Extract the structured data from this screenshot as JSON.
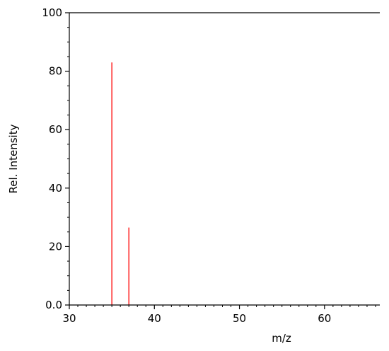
{
  "chart_data": {
    "type": "bar",
    "subtype": "stick-spectrum",
    "title": "",
    "xlabel": "m/z",
    "ylabel": "Rel. Intensity",
    "xlim": [
      30,
      66.5
    ],
    "ylim": [
      0,
      100
    ],
    "x_ticks": [
      30,
      40,
      50,
      60
    ],
    "x_tick_labels": [
      "30",
      "40",
      "50",
      "60"
    ],
    "y_ticks": [
      0,
      20,
      40,
      60,
      80,
      100
    ],
    "y_tick_labels": [
      "0.0",
      "20",
      "40",
      "60",
      "80",
      "100"
    ],
    "x_minor_step": 1,
    "y_minor_step": 5,
    "grid": false,
    "peak_color": "#ff0000",
    "series": [
      {
        "x": [
          35,
          37
        ],
        "values": [
          83,
          26.5
        ]
      }
    ]
  }
}
